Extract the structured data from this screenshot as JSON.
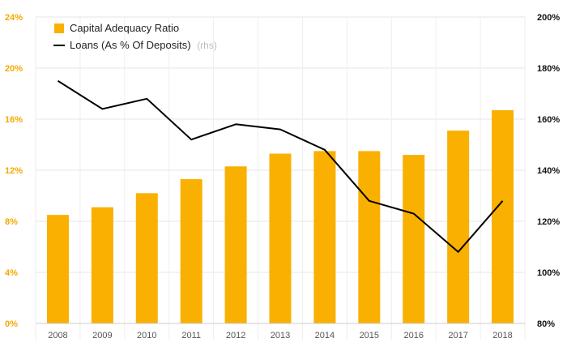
{
  "chart_data": {
    "type": "bar",
    "categories": [
      "2008",
      "2009",
      "2010",
      "2011",
      "2012",
      "2013",
      "2014",
      "2015",
      "2016",
      "2017",
      "2018"
    ],
    "series": [
      {
        "name": "Capital Adequacy Ratio",
        "type": "bar",
        "axis": "left",
        "color": "#f9b000",
        "values": [
          8.5,
          9.1,
          10.2,
          11.3,
          12.3,
          13.3,
          13.5,
          13.5,
          13.2,
          15.1,
          16.7
        ]
      },
      {
        "name": "Loans (As % Of Deposits)",
        "note": "(rhs)",
        "type": "line",
        "axis": "right",
        "color": "#000000",
        "values": [
          175,
          164,
          168,
          152,
          158,
          156,
          148,
          128,
          123,
          108,
          128
        ]
      }
    ],
    "y_left": {
      "ticks": [
        "0%",
        "4%",
        "8%",
        "12%",
        "16%",
        "20%",
        "24%"
      ],
      "ylim": [
        0,
        24
      ]
    },
    "y_right": {
      "ticks": [
        "80%",
        "100%",
        "120%",
        "140%",
        "160%",
        "180%",
        "200%"
      ],
      "ylim": [
        80,
        200
      ]
    },
    "grid": true,
    "legend_position": "top-left"
  }
}
